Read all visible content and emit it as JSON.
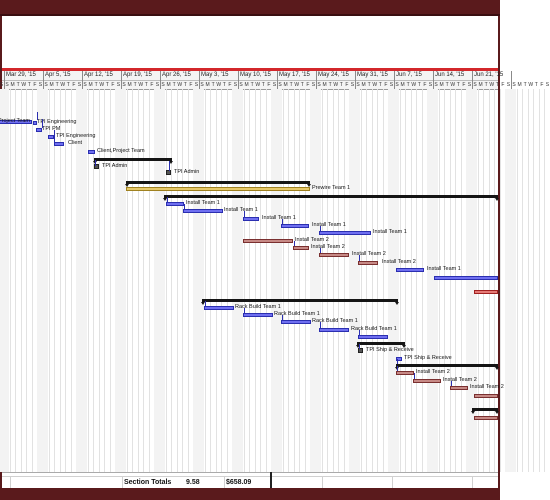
{
  "timeline": {
    "weeks": [
      "Mar 29, '15",
      "Apr 5, '15",
      "Apr 12, '15",
      "Apr 19, '15",
      "Apr 26, '15",
      "May 3, '15",
      "May 10, '15",
      "May 17, '15",
      "May 24, '15",
      "May 31, '15",
      "Jun 7, '15",
      "Jun 14, '15",
      "Jun 21, '15"
    ],
    "day_letters": [
      "S",
      "M",
      "T",
      "W",
      "T",
      "F",
      "S"
    ]
  },
  "tasks": [
    {
      "label": "Project Team"
    },
    {
      "label": "TPI Engineering"
    },
    {
      "label": "TPI PM"
    },
    {
      "label": "TPI Engineering"
    },
    {
      "label": "Client"
    },
    {
      "label": "Client,Project Team"
    },
    {
      "label": "TPI Admin"
    },
    {
      "label": "TPI Admin"
    },
    {
      "label": "Prewire Team 1"
    },
    {
      "label": "Install Team 1"
    },
    {
      "label": "Install Team 1"
    },
    {
      "label": "Install Team 1"
    },
    {
      "label": "Install Team 1"
    },
    {
      "label": "Install Team 1"
    },
    {
      "label": "Install Team 2"
    },
    {
      "label": "Install Team 2"
    },
    {
      "label": "Install Team 2"
    },
    {
      "label": "Install Team 2"
    },
    {
      "label": "Install Team 1"
    },
    {
      "label": "Rack Build Team 1"
    },
    {
      "label": "Rack Build Team 1"
    },
    {
      "label": "Rack Build Team 1"
    },
    {
      "label": "Rack Build Team 1"
    },
    {
      "label": "TPI Ship & Receive"
    },
    {
      "label": "TPI Ship & Receive"
    },
    {
      "label": "Install Team 2"
    },
    {
      "label": "Install Team 2"
    },
    {
      "label": "Install Team 2"
    }
  ],
  "footer": {
    "label": "Section Totals",
    "value1": "9.58",
    "value2": "$658.09"
  },
  "colors": {
    "frame": "#5a1a1c",
    "accent_rule": "#d3272b",
    "task_bar": "#6f6ff0",
    "team2_bar": "#c78a86",
    "prewire_bar": "#e7c96a"
  }
}
